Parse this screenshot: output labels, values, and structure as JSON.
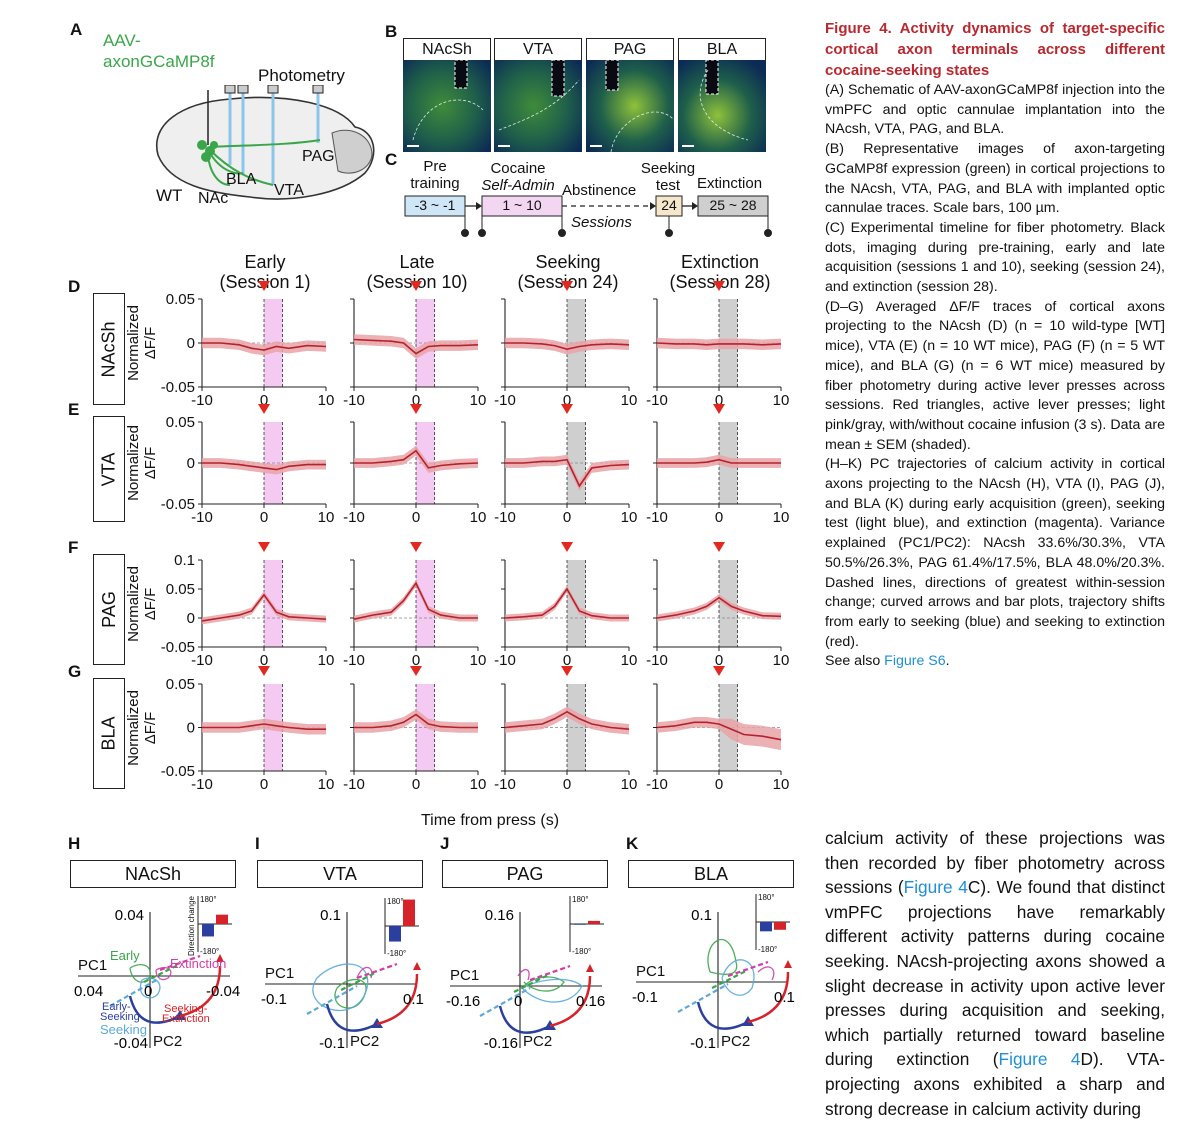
{
  "panel_letters": {
    "A": "A",
    "B": "B",
    "C": "C",
    "D": "D",
    "E": "E",
    "F": "F",
    "G": "G",
    "H": "H",
    "I": "I",
    "J": "J",
    "K": "K"
  },
  "schematic": {
    "virus": "AAV-\naxonGCaMP8f",
    "virus_line1": "AAV-",
    "virus_line2": "axonGCaMP8f",
    "photometry": "Photometry",
    "pag": "PAG",
    "bla": "BLA",
    "vta": "VTA",
    "wt": "WT",
    "nac": "NAc"
  },
  "images": [
    "NAcSh",
    "VTA",
    "PAG",
    "BLA"
  ],
  "timeline": {
    "pre_top": "Pre",
    "pre_bot": "training",
    "cocaine_top": "Cocaine",
    "cocaine_bot": "Self-Admin",
    "abstinence": "Abstinence",
    "seeking_top": "Seeking",
    "seeking_bot": "test",
    "extinction": "Extinction",
    "box_pre": "-3 ~ -1",
    "box_coc": "1 ~ 10",
    "box_seek": "24",
    "box_ext": "25 ~ 28",
    "sessions": "Sessions",
    "colors": {
      "pre": "#cfe6f6",
      "coc": "#f3d6f2",
      "seek": "#f6e7cc",
      "ext": "#cfcfcf"
    }
  },
  "columns": [
    {
      "line1": "Early",
      "line2": "(Session 1)"
    },
    {
      "line1": "Late",
      "line2": "(Session 10)"
    },
    {
      "line1": "Seeking",
      "line2": "(Session 24)"
    },
    {
      "line1": "Extinction",
      "line2": "(Session 28)"
    }
  ],
  "rows": [
    {
      "letter": "D",
      "region": "NAcSh",
      "ylabel1": "Normalized",
      "ylabel2": "ΔF/F",
      "yticks": [
        "0.05",
        "0",
        "-0.05"
      ]
    },
    {
      "letter": "E",
      "region": "VTA",
      "ylabel1": "Normalized",
      "ylabel2": "ΔF/F",
      "yticks": [
        "0.05",
        "0",
        "-0.05"
      ]
    },
    {
      "letter": "F",
      "region": "PAG",
      "ylabel1": "Normalized",
      "ylabel2": "ΔF/F",
      "yticks": [
        "0.1",
        "0.05",
        "0",
        "-0.05"
      ]
    },
    {
      "letter": "G",
      "region": "BLA",
      "ylabel1": "Normalized",
      "ylabel2": "ΔF/F",
      "yticks": [
        "0.05",
        "0",
        "-0.05"
      ]
    }
  ],
  "xticks": [
    "-10",
    "0",
    "10"
  ],
  "xlabel": "Time from press (s)",
  "chart_data": [
    {
      "type": "line",
      "row": "NAcSh",
      "x": [
        -10,
        -7,
        -4,
        -2,
        0,
        2,
        4,
        7,
        10
      ],
      "series": [
        {
          "values": [
            0,
            0,
            -0.002,
            -0.006,
            -0.008,
            -0.004,
            -0.006,
            -0.003,
            -0.004
          ]
        },
        {
          "values": [
            0.004,
            0.003,
            0.002,
            0,
            -0.012,
            -0.004,
            -0.003,
            -0.003,
            -0.002
          ]
        },
        {
          "values": [
            0,
            0,
            -0.001,
            -0.003,
            -0.007,
            -0.004,
            -0.002,
            -0.001,
            -0.002
          ]
        },
        {
          "values": [
            0,
            -0.001,
            -0.001,
            -0.002,
            -0.001,
            -0.001,
            -0.001,
            -0.002,
            -0.001
          ]
        }
      ]
    },
    {
      "type": "line",
      "row": "VTA",
      "x": [
        -10,
        -7,
        -4,
        -2,
        0,
        2,
        4,
        7,
        10
      ],
      "series": [
        {
          "values": [
            0,
            0,
            -0.002,
            -0.004,
            -0.006,
            -0.008,
            -0.004,
            -0.002,
            -0.002
          ]
        },
        {
          "values": [
            0,
            0,
            0.002,
            0.004,
            0.015,
            -0.006,
            -0.003,
            -0.001,
            0
          ]
        },
        {
          "values": [
            0,
            0,
            0.002,
            0.002,
            0.004,
            -0.028,
            -0.006,
            -0.003,
            -0.002
          ]
        },
        {
          "values": [
            0,
            0,
            0,
            0.001,
            0.004,
            0,
            0,
            0,
            0
          ]
        }
      ]
    },
    {
      "type": "line",
      "row": "PAG",
      "x": [
        -10,
        -7,
        -4,
        -2,
        0,
        2,
        4,
        7,
        10
      ],
      "series": [
        {
          "values": [
            -0.005,
            0,
            0.005,
            0.012,
            0.04,
            0.01,
            0.002,
            0,
            -0.002
          ]
        },
        {
          "values": [
            -0.002,
            0.005,
            0.01,
            0.03,
            0.06,
            0.015,
            0.005,
            0,
            0
          ]
        },
        {
          "values": [
            0,
            0.002,
            0.005,
            0.02,
            0.05,
            0.012,
            0.004,
            0,
            0
          ]
        },
        {
          "values": [
            0,
            0.005,
            0.012,
            0.02,
            0.035,
            0.02,
            0.012,
            0.004,
            0.003
          ]
        }
      ]
    },
    {
      "type": "line",
      "row": "BLA",
      "x": [
        -10,
        -7,
        -4,
        -2,
        0,
        2,
        4,
        7,
        10
      ],
      "series": [
        {
          "values": [
            0,
            0,
            0,
            0.002,
            0.004,
            0.002,
            0,
            -0.002,
            -0.002
          ]
        },
        {
          "values": [
            0,
            0,
            0.002,
            0.006,
            0.015,
            0.004,
            0.001,
            0,
            0
          ]
        },
        {
          "values": [
            0,
            0.002,
            0.004,
            0.01,
            0.018,
            0.01,
            0.004,
            0,
            -0.002
          ]
        },
        {
          "values": [
            0,
            0.002,
            0.006,
            0.006,
            0.004,
            -0.002,
            -0.008,
            -0.01,
            -0.014
          ]
        }
      ]
    },
    {
      "type": "scatter",
      "panel": "NAcSh",
      "x_ticks": [
        "0.04",
        "0",
        "-0.04"
      ],
      "y_ticks": [
        "0.04",
        "-0.04"
      ],
      "xlabel": "PC1",
      "ylabel": "PC2",
      "labels": [
        "Early",
        "Extinction",
        "Early-\nSeeking",
        "Seeking",
        "Seeking-\nExtinction"
      ],
      "bars": [
        -80,
        60
      ]
    },
    {
      "type": "scatter",
      "panel": "VTA",
      "x_ticks": [
        "-0.1",
        "0.1"
      ],
      "y_ticks": [
        "0.1",
        "-0.1"
      ],
      "xlabel": "PC1",
      "ylabel": "PC2",
      "bars": [
        -100,
        170
      ]
    },
    {
      "type": "scatter",
      "panel": "PAG",
      "x_ticks": [
        "-0.16",
        "0",
        "0.16"
      ],
      "y_ticks": [
        "0.16",
        "-0.16"
      ],
      "xlabel": "PC1",
      "ylabel": "PC2",
      "bars": [
        -5,
        20
      ]
    },
    {
      "type": "scatter",
      "panel": "BLA",
      "x_ticks": [
        "-0.1",
        "0.1"
      ],
      "y_ticks": [
        "0.1",
        "-0.1"
      ],
      "xlabel": "PC1",
      "ylabel": "PC2",
      "bars": [
        -60,
        -50
      ]
    }
  ],
  "pc_panels": [
    {
      "letter": "H",
      "title": "NAcSh"
    },
    {
      "letter": "I",
      "title": "VTA"
    },
    {
      "letter": "J",
      "title": "PAG"
    },
    {
      "letter": "K",
      "title": "BLA"
    }
  ],
  "pc_text": {
    "direction_change": "Direction change",
    "ytop": "180°",
    "ybot": "-180°",
    "early": "Early",
    "extinction": "Extinction",
    "early_seek": "Early-",
    "early_seek2": "Seeking",
    "seeking": "Seeking",
    "seek_ext": "Seeking-",
    "seek_ext2": "Extinction"
  },
  "caption": {
    "title": "Figure 4. Activity dynamics of target-specific cortical axon terminals across different cocaine-seeking states",
    "A": "(A) Schematic of AAV-axonGCaMP8f injection into the vmPFC and optic cannulae implantation into the NAcsh, VTA, PAG, and BLA.",
    "B": "(B) Representative images of axon-targeting GCaMP8f expression (green) in cortical projections to the NAcsh, VTA, PAG, and BLA with implanted optic cannulae traces. Scale bars, 100 µm.",
    "C": "(C) Experimental timeline for fiber photometry. Black dots, imaging during pre-training, early and late acquisition (sessions 1 and 10), seeking (session 24), and extinction (session 28).",
    "DG": "(D–G) Averaged ΔF/F traces of cortical axons projecting to the NAcsh (D) (n = 10 wild-type [WT] mice), VTA (E) (n = 10 WT mice), PAG (F) (n = 5 WT mice), and BLA (G) (n = 6 WT mice) measured by fiber photometry during active lever presses across sessions. Red triangles, active lever presses; light pink/gray, with/without cocaine infusion (3 s). Data are mean ± SEM (shaded).",
    "HK": "(H–K) PC trajectories of calcium activity in cortical axons projecting to the NAcsh (H), VTA (I), PAG (J), and BLA (K) during early acquisition (green), seeking test (light blue), and extinction (magenta). Variance explained (PC1/PC2): NAcsh 33.6%/30.3%, VTA 50.5%/26.3%, PAG 61.4%/17.5%, BLA 48.0%/20.3%. Dashed lines, directions of greatest within-session change; curved arrows and bar plots, trajectory shifts from early to seeking (blue) and seeking to extinction (red).",
    "see_also_pre": "See also ",
    "see_also_link": "Figure S6",
    "see_also_post": "."
  },
  "body": {
    "t1": "calcium activity of these projections was then recorded by fiber photometry across sessions (",
    "l1": "Figure 4",
    "t2": "C). We found that distinct vmPFC projections have remarkably different activity patterns during cocaine seeking. NAcsh-projecting axons showed a slight decrease in activity upon active lever presses during acquisition and seeking, which partially returned toward baseline during extinction (",
    "l2": "Figure 4",
    "t3": "D). VTA-projecting axons exhibited a sharp and strong decrease in calcium activity during"
  },
  "colors": {
    "trace": "#b5222c",
    "sem": "#e8a3a8",
    "pink": "#f4c9f2",
    "gray": "#cfcfcf",
    "triangle": "#e3281f",
    "green": "#3aa64a",
    "blue": "#2a3f9e",
    "lightblue": "#5aa9d9",
    "magenta": "#d23ca8",
    "red": "#d6232a",
    "caption_title": "#b8282e",
    "link": "#1f8fd6"
  }
}
